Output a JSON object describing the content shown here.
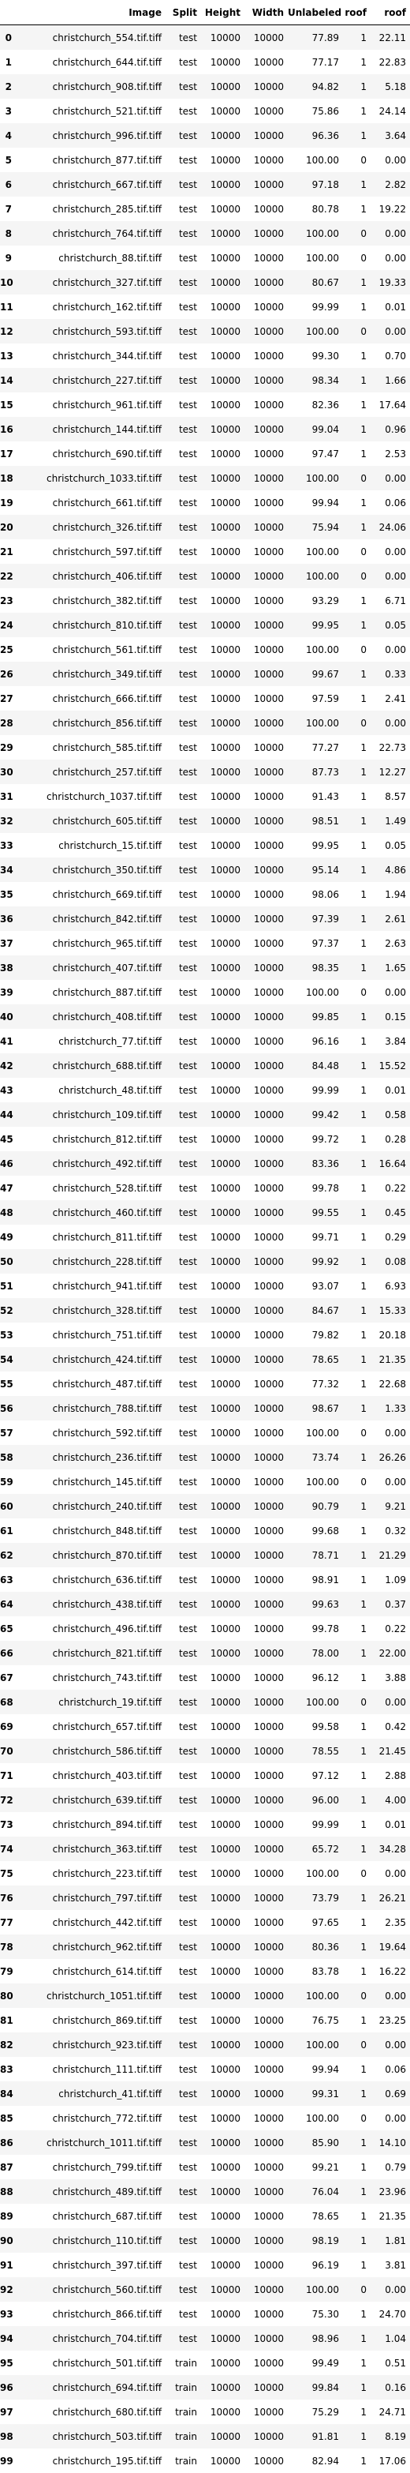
{
  "table": {
    "columns": [
      "",
      "Image",
      "Split",
      "Height",
      "Width",
      "Unlabeled",
      "roof",
      "roof"
    ],
    "rows": [
      [
        "0",
        "christchurch_554.tif.tiff",
        "test",
        "10000",
        "10000",
        "77.89",
        "1",
        "22.11"
      ],
      [
        "1",
        "christchurch_644.tif.tiff",
        "test",
        "10000",
        "10000",
        "77.17",
        "1",
        "22.83"
      ],
      [
        "2",
        "christchurch_908.tif.tiff",
        "test",
        "10000",
        "10000",
        "94.82",
        "1",
        "5.18"
      ],
      [
        "3",
        "christchurch_521.tif.tiff",
        "test",
        "10000",
        "10000",
        "75.86",
        "1",
        "24.14"
      ],
      [
        "4",
        "christchurch_996.tif.tiff",
        "test",
        "10000",
        "10000",
        "96.36",
        "1",
        "3.64"
      ],
      [
        "5",
        "christchurch_877.tif.tiff",
        "test",
        "10000",
        "10000",
        "100.00",
        "0",
        "0.00"
      ],
      [
        "6",
        "christchurch_667.tif.tiff",
        "test",
        "10000",
        "10000",
        "97.18",
        "1",
        "2.82"
      ],
      [
        "7",
        "christchurch_285.tif.tiff",
        "test",
        "10000",
        "10000",
        "80.78",
        "1",
        "19.22"
      ],
      [
        "8",
        "christchurch_764.tif.tiff",
        "test",
        "10000",
        "10000",
        "100.00",
        "0",
        "0.00"
      ],
      [
        "9",
        "christchurch_88.tif.tiff",
        "test",
        "10000",
        "10000",
        "100.00",
        "0",
        "0.00"
      ],
      [
        "10",
        "christchurch_327.tif.tiff",
        "test",
        "10000",
        "10000",
        "80.67",
        "1",
        "19.33"
      ],
      [
        "11",
        "christchurch_162.tif.tiff",
        "test",
        "10000",
        "10000",
        "99.99",
        "1",
        "0.01"
      ],
      [
        "12",
        "christchurch_593.tif.tiff",
        "test",
        "10000",
        "10000",
        "100.00",
        "0",
        "0.00"
      ],
      [
        "13",
        "christchurch_344.tif.tiff",
        "test",
        "10000",
        "10000",
        "99.30",
        "1",
        "0.70"
      ],
      [
        "14",
        "christchurch_227.tif.tiff",
        "test",
        "10000",
        "10000",
        "98.34",
        "1",
        "1.66"
      ],
      [
        "15",
        "christchurch_961.tif.tiff",
        "test",
        "10000",
        "10000",
        "82.36",
        "1",
        "17.64"
      ],
      [
        "16",
        "christchurch_144.tif.tiff",
        "test",
        "10000",
        "10000",
        "99.04",
        "1",
        "0.96"
      ],
      [
        "17",
        "christchurch_690.tif.tiff",
        "test",
        "10000",
        "10000",
        "97.47",
        "1",
        "2.53"
      ],
      [
        "18",
        "christchurch_1033.tif.tiff",
        "test",
        "10000",
        "10000",
        "100.00",
        "0",
        "0.00"
      ],
      [
        "19",
        "christchurch_661.tif.tiff",
        "test",
        "10000",
        "10000",
        "99.94",
        "1",
        "0.06"
      ],
      [
        "20",
        "christchurch_326.tif.tiff",
        "test",
        "10000",
        "10000",
        "75.94",
        "1",
        "24.06"
      ],
      [
        "21",
        "christchurch_597.tif.tiff",
        "test",
        "10000",
        "10000",
        "100.00",
        "0",
        "0.00"
      ],
      [
        "22",
        "christchurch_406.tif.tiff",
        "test",
        "10000",
        "10000",
        "100.00",
        "0",
        "0.00"
      ],
      [
        "23",
        "christchurch_382.tif.tiff",
        "test",
        "10000",
        "10000",
        "93.29",
        "1",
        "6.71"
      ],
      [
        "24",
        "christchurch_810.tif.tiff",
        "test",
        "10000",
        "10000",
        "99.95",
        "1",
        "0.05"
      ],
      [
        "25",
        "christchurch_561.tif.tiff",
        "test",
        "10000",
        "10000",
        "100.00",
        "0",
        "0.00"
      ],
      [
        "26",
        "christchurch_349.tif.tiff",
        "test",
        "10000",
        "10000",
        "99.67",
        "1",
        "0.33"
      ],
      [
        "27",
        "christchurch_666.tif.tiff",
        "test",
        "10000",
        "10000",
        "97.59",
        "1",
        "2.41"
      ],
      [
        "28",
        "christchurch_856.tif.tiff",
        "test",
        "10000",
        "10000",
        "100.00",
        "0",
        "0.00"
      ],
      [
        "29",
        "christchurch_585.tif.tiff",
        "test",
        "10000",
        "10000",
        "77.27",
        "1",
        "22.73"
      ],
      [
        "30",
        "christchurch_257.tif.tiff",
        "test",
        "10000",
        "10000",
        "87.73",
        "1",
        "12.27"
      ],
      [
        "31",
        "christchurch_1037.tif.tiff",
        "test",
        "10000",
        "10000",
        "91.43",
        "1",
        "8.57"
      ],
      [
        "32",
        "christchurch_605.tif.tiff",
        "test",
        "10000",
        "10000",
        "98.51",
        "1",
        "1.49"
      ],
      [
        "33",
        "christchurch_15.tif.tiff",
        "test",
        "10000",
        "10000",
        "99.95",
        "1",
        "0.05"
      ],
      [
        "34",
        "christchurch_350.tif.tiff",
        "test",
        "10000",
        "10000",
        "95.14",
        "1",
        "4.86"
      ],
      [
        "35",
        "christchurch_669.tif.tiff",
        "test",
        "10000",
        "10000",
        "98.06",
        "1",
        "1.94"
      ],
      [
        "36",
        "christchurch_842.tif.tiff",
        "test",
        "10000",
        "10000",
        "97.39",
        "1",
        "2.61"
      ],
      [
        "37",
        "christchurch_965.tif.tiff",
        "test",
        "10000",
        "10000",
        "97.37",
        "1",
        "2.63"
      ],
      [
        "38",
        "christchurch_407.tif.tiff",
        "test",
        "10000",
        "10000",
        "98.35",
        "1",
        "1.65"
      ],
      [
        "39",
        "christchurch_887.tif.tiff",
        "test",
        "10000",
        "10000",
        "100.00",
        "0",
        "0.00"
      ],
      [
        "40",
        "christchurch_408.tif.tiff",
        "test",
        "10000",
        "10000",
        "99.85",
        "1",
        "0.15"
      ],
      [
        "41",
        "christchurch_77.tif.tiff",
        "test",
        "10000",
        "10000",
        "96.16",
        "1",
        "3.84"
      ],
      [
        "42",
        "christchurch_688.tif.tiff",
        "test",
        "10000",
        "10000",
        "84.48",
        "1",
        "15.52"
      ],
      [
        "43",
        "christchurch_48.tif.tiff",
        "test",
        "10000",
        "10000",
        "99.99",
        "1",
        "0.01"
      ],
      [
        "44",
        "christchurch_109.tif.tiff",
        "test",
        "10000",
        "10000",
        "99.42",
        "1",
        "0.58"
      ],
      [
        "45",
        "christchurch_812.tif.tiff",
        "test",
        "10000",
        "10000",
        "99.72",
        "1",
        "0.28"
      ],
      [
        "46",
        "christchurch_492.tif.tiff",
        "test",
        "10000",
        "10000",
        "83.36",
        "1",
        "16.64"
      ],
      [
        "47",
        "christchurch_528.tif.tiff",
        "test",
        "10000",
        "10000",
        "99.78",
        "1",
        "0.22"
      ],
      [
        "48",
        "christchurch_460.tif.tiff",
        "test",
        "10000",
        "10000",
        "99.55",
        "1",
        "0.45"
      ],
      [
        "49",
        "christchurch_811.tif.tiff",
        "test",
        "10000",
        "10000",
        "99.71",
        "1",
        "0.29"
      ],
      [
        "50",
        "christchurch_228.tif.tiff",
        "test",
        "10000",
        "10000",
        "99.92",
        "1",
        "0.08"
      ],
      [
        "51",
        "christchurch_941.tif.tiff",
        "test",
        "10000",
        "10000",
        "93.07",
        "1",
        "6.93"
      ],
      [
        "52",
        "christchurch_328.tif.tiff",
        "test",
        "10000",
        "10000",
        "84.67",
        "1",
        "15.33"
      ],
      [
        "53",
        "christchurch_751.tif.tiff",
        "test",
        "10000",
        "10000",
        "79.82",
        "1",
        "20.18"
      ],
      [
        "54",
        "christchurch_424.tif.tiff",
        "test",
        "10000",
        "10000",
        "78.65",
        "1",
        "21.35"
      ],
      [
        "55",
        "christchurch_487.tif.tiff",
        "test",
        "10000",
        "10000",
        "77.32",
        "1",
        "22.68"
      ],
      [
        "56",
        "christchurch_788.tif.tiff",
        "test",
        "10000",
        "10000",
        "98.67",
        "1",
        "1.33"
      ],
      [
        "57",
        "christchurch_592.tif.tiff",
        "test",
        "10000",
        "10000",
        "100.00",
        "0",
        "0.00"
      ],
      [
        "58",
        "christchurch_236.tif.tiff",
        "test",
        "10000",
        "10000",
        "73.74",
        "1",
        "26.26"
      ],
      [
        "59",
        "christchurch_145.tif.tiff",
        "test",
        "10000",
        "10000",
        "100.00",
        "0",
        "0.00"
      ],
      [
        "60",
        "christchurch_240.tif.tiff",
        "test",
        "10000",
        "10000",
        "90.79",
        "1",
        "9.21"
      ],
      [
        "61",
        "christchurch_848.tif.tiff",
        "test",
        "10000",
        "10000",
        "99.68",
        "1",
        "0.32"
      ],
      [
        "62",
        "christchurch_870.tif.tiff",
        "test",
        "10000",
        "10000",
        "78.71",
        "1",
        "21.29"
      ],
      [
        "63",
        "christchurch_636.tif.tiff",
        "test",
        "10000",
        "10000",
        "98.91",
        "1",
        "1.09"
      ],
      [
        "64",
        "christchurch_438.tif.tiff",
        "test",
        "10000",
        "10000",
        "99.63",
        "1",
        "0.37"
      ],
      [
        "65",
        "christchurch_496.tif.tiff",
        "test",
        "10000",
        "10000",
        "99.78",
        "1",
        "0.22"
      ],
      [
        "66",
        "christchurch_821.tif.tiff",
        "test",
        "10000",
        "10000",
        "78.00",
        "1",
        "22.00"
      ],
      [
        "67",
        "christchurch_743.tif.tiff",
        "test",
        "10000",
        "10000",
        "96.12",
        "1",
        "3.88"
      ],
      [
        "68",
        "christchurch_19.tif.tiff",
        "test",
        "10000",
        "10000",
        "100.00",
        "0",
        "0.00"
      ],
      [
        "69",
        "christchurch_657.tif.tiff",
        "test",
        "10000",
        "10000",
        "99.58",
        "1",
        "0.42"
      ],
      [
        "70",
        "christchurch_586.tif.tiff",
        "test",
        "10000",
        "10000",
        "78.55",
        "1",
        "21.45"
      ],
      [
        "71",
        "christchurch_403.tif.tiff",
        "test",
        "10000",
        "10000",
        "97.12",
        "1",
        "2.88"
      ],
      [
        "72",
        "christchurch_639.tif.tiff",
        "test",
        "10000",
        "10000",
        "96.00",
        "1",
        "4.00"
      ],
      [
        "73",
        "christchurch_894.tif.tiff",
        "test",
        "10000",
        "10000",
        "99.99",
        "1",
        "0.01"
      ],
      [
        "74",
        "christchurch_363.tif.tiff",
        "test",
        "10000",
        "10000",
        "65.72",
        "1",
        "34.28"
      ],
      [
        "75",
        "christchurch_223.tif.tiff",
        "test",
        "10000",
        "10000",
        "100.00",
        "0",
        "0.00"
      ],
      [
        "76",
        "christchurch_797.tif.tiff",
        "test",
        "10000",
        "10000",
        "73.79",
        "1",
        "26.21"
      ],
      [
        "77",
        "christchurch_442.tif.tiff",
        "test",
        "10000",
        "10000",
        "97.65",
        "1",
        "2.35"
      ],
      [
        "78",
        "christchurch_962.tif.tiff",
        "test",
        "10000",
        "10000",
        "80.36",
        "1",
        "19.64"
      ],
      [
        "79",
        "christchurch_614.tif.tiff",
        "test",
        "10000",
        "10000",
        "83.78",
        "1",
        "16.22"
      ],
      [
        "80",
        "christchurch_1051.tif.tiff",
        "test",
        "10000",
        "10000",
        "100.00",
        "0",
        "0.00"
      ],
      [
        "81",
        "christchurch_869.tif.tiff",
        "test",
        "10000",
        "10000",
        "76.75",
        "1",
        "23.25"
      ],
      [
        "82",
        "christchurch_923.tif.tiff",
        "test",
        "10000",
        "10000",
        "100.00",
        "0",
        "0.00"
      ],
      [
        "83",
        "christchurch_111.tif.tiff",
        "test",
        "10000",
        "10000",
        "99.94",
        "1",
        "0.06"
      ],
      [
        "84",
        "christchurch_41.tif.tiff",
        "test",
        "10000",
        "10000",
        "99.31",
        "1",
        "0.69"
      ],
      [
        "85",
        "christchurch_772.tif.tiff",
        "test",
        "10000",
        "10000",
        "100.00",
        "0",
        "0.00"
      ],
      [
        "86",
        "christchurch_1011.tif.tiff",
        "test",
        "10000",
        "10000",
        "85.90",
        "1",
        "14.10"
      ],
      [
        "87",
        "christchurch_799.tif.tiff",
        "test",
        "10000",
        "10000",
        "99.21",
        "1",
        "0.79"
      ],
      [
        "88",
        "christchurch_489.tif.tiff",
        "test",
        "10000",
        "10000",
        "76.04",
        "1",
        "23.96"
      ],
      [
        "89",
        "christchurch_687.tif.tiff",
        "test",
        "10000",
        "10000",
        "78.65",
        "1",
        "21.35"
      ],
      [
        "90",
        "christchurch_110.tif.tiff",
        "test",
        "10000",
        "10000",
        "98.19",
        "1",
        "1.81"
      ],
      [
        "91",
        "christchurch_397.tif.tiff",
        "test",
        "10000",
        "10000",
        "96.19",
        "1",
        "3.81"
      ],
      [
        "92",
        "christchurch_560.tif.tiff",
        "test",
        "10000",
        "10000",
        "100.00",
        "0",
        "0.00"
      ],
      [
        "93",
        "christchurch_866.tif.tiff",
        "test",
        "10000",
        "10000",
        "75.30",
        "1",
        "24.70"
      ],
      [
        "94",
        "christchurch_704.tif.tiff",
        "test",
        "10000",
        "10000",
        "98.96",
        "1",
        "1.04"
      ],
      [
        "95",
        "christchurch_501.tif.tiff",
        "train",
        "10000",
        "10000",
        "99.49",
        "1",
        "0.51"
      ],
      [
        "96",
        "christchurch_694.tif.tiff",
        "train",
        "10000",
        "10000",
        "99.84",
        "1",
        "0.16"
      ],
      [
        "97",
        "christchurch_680.tif.tiff",
        "train",
        "10000",
        "10000",
        "75.29",
        "1",
        "24.71"
      ],
      [
        "98",
        "christchurch_503.tif.tiff",
        "train",
        "10000",
        "10000",
        "91.81",
        "1",
        "8.19"
      ],
      [
        "99",
        "christchurch_195.tif.tiff",
        "train",
        "10000",
        "10000",
        "82.94",
        "1",
        "17.06"
      ]
    ]
  }
}
